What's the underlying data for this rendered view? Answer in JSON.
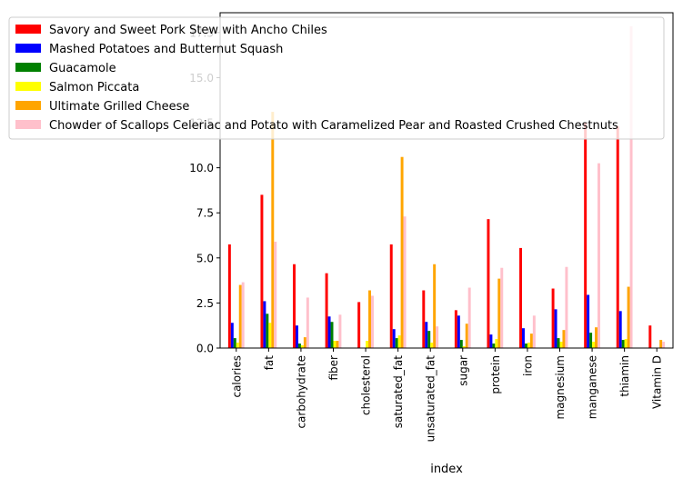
{
  "chart_data": {
    "type": "bar",
    "xlabel": "index",
    "ylabel": "",
    "title": "",
    "ylim": [
      0,
      18.6
    ],
    "yticks": [
      0.0,
      2.5,
      5.0,
      7.5,
      10.0,
      12.5,
      15.0,
      17.5
    ],
    "ytick_labels": [
      "0.0",
      "2.5",
      "5.0",
      "7.5",
      "10.0",
      "12.5",
      "15.0",
      "17.5"
    ],
    "legend_position": "top-left",
    "grid": false,
    "categories": [
      "calories",
      "fat",
      "carbohydrate",
      "fiber",
      "cholesterol",
      "saturated_fat",
      "unsaturated_fat",
      "sugar",
      "protein",
      "iron",
      "magnesium",
      "manganese",
      "thiamin",
      "Vitamin D"
    ],
    "series": [
      {
        "name": "Savory and Sweet Pork Stew with Ancho Chiles",
        "color": "#ff0000",
        "values": [
          5.75,
          8.5,
          4.65,
          4.15,
          2.55,
          5.75,
          3.2,
          2.1,
          7.15,
          5.55,
          3.3,
          12.5,
          12.3,
          1.25
        ]
      },
      {
        "name": "Mashed Potatoes and Butternut Squash",
        "color": "#0000ff",
        "values": [
          1.4,
          2.6,
          1.25,
          1.75,
          0.0,
          1.05,
          1.45,
          1.8,
          0.75,
          1.1,
          2.15,
          2.95,
          2.05,
          0.0
        ]
      },
      {
        "name": "Guacamole",
        "color": "#008000",
        "values": [
          0.55,
          1.9,
          0.25,
          1.45,
          0.0,
          0.55,
          0.95,
          0.45,
          0.25,
          0.25,
          0.55,
          0.85,
          0.45,
          0.0
        ]
      },
      {
        "name": "Salmon Piccata",
        "color": "#ffff00",
        "values": [
          0.3,
          1.4,
          0.15,
          0.4,
          0.4,
          0.7,
          0.3,
          0.1,
          0.5,
          0.3,
          0.35,
          0.35,
          0.5,
          0.0
        ]
      },
      {
        "name": "Ultimate Grilled Cheese",
        "color": "#ffa500",
        "values": [
          3.5,
          13.1,
          0.6,
          0.4,
          3.2,
          10.6,
          4.65,
          1.35,
          3.85,
          0.8,
          1.0,
          1.15,
          3.4,
          0.45
        ]
      },
      {
        "name": "Chowder of Scallops Celeriac and Potato with Caramelized Pear and Roasted Crushed Chestnuts",
        "color": "#ffc0cb",
        "values": [
          3.65,
          5.9,
          2.8,
          1.85,
          2.9,
          7.3,
          1.2,
          3.35,
          4.45,
          1.8,
          4.5,
          10.25,
          17.85,
          0.35
        ]
      }
    ]
  }
}
